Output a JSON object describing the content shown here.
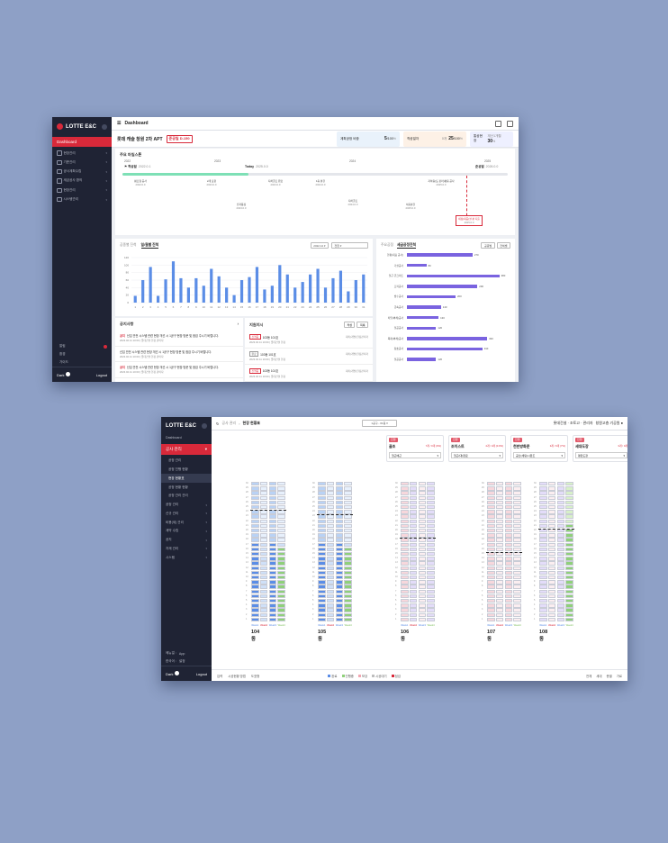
{
  "window1": {
    "logo": "LOTTE E&C",
    "nav": {
      "active": "Dashboard",
      "items": [
        "현장관리",
        "기준관리",
        "공사계획수립",
        "세금공사 환의",
        "현장관리",
        "시스템관리"
      ]
    },
    "util": [
      "알림",
      "환경",
      "가이드"
    ],
    "footer": {
      "dark_label": "Dark",
      "logout_label": "Logout"
    },
    "header": {
      "title": "Dashboard"
    },
    "project": {
      "name": "롯데 캐슬 창원 2차 APT",
      "dday": "준공일 D-150",
      "stats": [
        {
          "label": "계획공정 비중",
          "value": "5",
          "total": "/100",
          "unit": "%",
          "color": "#e9f2fb"
        },
        {
          "label": "착공일자",
          "value": "25",
          "total": "/100",
          "unit": "%",
          "prefix": "0개",
          "color": "#fdf1e6"
        },
        {
          "label": "통상현장",
          "value": "30",
          "total": "",
          "unit": "%",
          "prefix": "재산1개월",
          "color": "#eef0ff"
        }
      ]
    },
    "milestone": {
      "title": "주요 마일스톤",
      "years": [
        "2022",
        "2023",
        "2024",
        "2025"
      ],
      "start_label": "착공일",
      "start_date": "2022.0.1",
      "today_label": "Today",
      "today_date": "2025.0.0",
      "end_label": "준공일",
      "end_date": "2026.0.0",
      "items_top": [
        {
          "name": "펌프형 공사",
          "date": "2022.0.0"
        },
        {
          "name": "2개 포함",
          "date": "2023.0.0"
        },
        {
          "name": "지하골조 완료",
          "date": "2023.0.0"
        },
        {
          "name": "1층 분할",
          "date": "2024.0.0"
        },
        {
          "name": "지하층(토 정리)평층 공사",
          "date": "2025.0.0"
        }
      ],
      "items_bottom": [
        {
          "name": "전자동장",
          "date": "2023.0.0"
        },
        {
          "name": "지하골조",
          "date": "2024.0.0"
        },
        {
          "name": "서층분할",
          "date": "2025.0.0"
        }
      ],
      "flag": {
        "name": "세정(대공)설 분 지출",
        "date": "2025.0.0"
      }
    },
    "progress_chart": {
      "tabs": [
        "공종별 진척",
        "일/월별 진척"
      ],
      "filter_year": "2022.12",
      "filter_type": "전환"
    },
    "chart_data": {
      "type": "bar",
      "categories": [
        "1",
        "2",
        "3",
        "4",
        "5",
        "6",
        "7",
        "8",
        "9",
        "10",
        "11",
        "12",
        "13",
        "14",
        "15",
        "16",
        "17",
        "18",
        "19",
        "20",
        "21",
        "22",
        "23",
        "24",
        "25",
        "26",
        "27",
        "28",
        "29",
        "30",
        "31"
      ],
      "values": [
        18,
        60,
        95,
        18,
        62,
        110,
        65,
        40,
        65,
        45,
        90,
        70,
        40,
        20,
        60,
        68,
        95,
        35,
        45,
        100,
        75,
        40,
        55,
        75,
        90,
        40,
        65,
        85,
        30,
        60,
        75
      ],
      "ylim": [
        0,
        120
      ],
      "yticks": [
        "0",
        "20",
        "40",
        "60",
        "80",
        "100",
        "120"
      ],
      "xlabel": "",
      "ylabel": "",
      "title": ""
    },
    "notice": {
      "title": "공지사항",
      "rows": [
        {
          "tag": "공지",
          "text": "신입 안전 시스템 관련 현장 개선 시 1공구 현장 방문 및 점검 주시기 바랍니다.",
          "date": "2023.02.11 10:00 | 롯데건설 현장 관리자"
        },
        {
          "tag": "",
          "text": "신입 안전 시스템 관련 현장 개선 시 1공구 현장 방문 및 점검 주시기 바랍니다.",
          "date": "2023.02.11 10:00 | 롯데건설 현장 관리자"
        },
        {
          "tag": "공지",
          "text": "신입 안전 시스템 관련 현장 개선 시 1공구 현장 방문 및 점검 주시기 바랍니다.",
          "date": "2023.02.11 10:00 | 롯데건설 현장 관리자"
        }
      ]
    },
    "instruction": {
      "title": "지원지시",
      "buttons": [
        "작성",
        "목록"
      ],
      "rows": [
        {
          "tag": "진행중",
          "text": "103동 101호",
          "date": "2023.02.11 10:00 | 롯데건설 현장",
          "owner": "대리(개발)현장관리자"
        },
        {
          "tag": "완료",
          "text": "103동 101호",
          "date": "2023.02.11 10:00 | 롯데건설 현장",
          "owner": "대리(개발)현장관리자"
        },
        {
          "tag": "진행중",
          "text": "103동 101호",
          "date": "2023.02.11 10:00 | 롯데건설 현장",
          "owner": "대리(개발)현장관리자"
        }
      ]
    },
    "rank": {
      "title": "주요공정",
      "subtitle": "세금공정진척",
      "buttons": [
        "공종별",
        "전체별"
      ],
      "items": [
        {
          "name": "현황(대표 공사)",
          "value": 270
        },
        {
          "name": "가설공사",
          "value": 80
        },
        {
          "name": "철근 콘크리트",
          "value": 380
        },
        {
          "name": "조적공사",
          "value": 290
        },
        {
          "name": "방수공사",
          "value": 200
        },
        {
          "name": "금속공사",
          "value": 140
        },
        {
          "name": "타일(벽체)공사",
          "value": 130
        },
        {
          "name": "철공공사",
          "value": 120
        },
        {
          "name": "목재(벽체)공사",
          "value": 330
        },
        {
          "name": "창호공사",
          "value": 310
        },
        {
          "name": "철공공사",
          "value": 120
        }
      ]
    }
  },
  "window2": {
    "logo": "LOTTE E&C",
    "nav": {
      "top": "Dashboard",
      "active": "공사 관리",
      "sub": [
        "공정 관리",
        "공정 진행 현황",
        "현장 현황표",
        "공정 현황 현황",
        "공정 관리 관리"
      ],
      "items": [
        "공정 관리",
        "신규 관리",
        "비용(세) 관리",
        "계약 수립",
        "공지",
        "자재 관리",
        "시스템"
      ]
    },
    "side_foot": {
      "menu_label": "메뉴얼 :",
      "menu_value": "App",
      "lang_label": "한국어 :",
      "lang_value": "설정",
      "dark": "Dark",
      "logout": "Logout"
    },
    "header": {
      "crumb1": "공사 관리",
      "crumb2": "현장 현황표",
      "select": "1공구 - 01동",
      "user1": "롯데건설 · 조토고 · 관리자",
      "user2": "창원고층 기공원 ●"
    },
    "cards": [
      {
        "pill": "진행",
        "title": "골조",
        "value": "7개 / 0개 (0%)",
        "select": "철근배근"
      },
      {
        "pill": "진행",
        "title": "조이스트",
        "value": "4개 / 0개 (0.0%)",
        "select": "철근(대)완료"
      },
      {
        "pill": "진행",
        "title": "천판방화문",
        "value": "3개 / 0개 (7%)",
        "select": "공산(세팅)시완조"
      },
      {
        "pill": "진행",
        "title": "세대도장",
        "value": "3개 / 0개",
        "select": "평판도장"
      }
    ],
    "buildings": [
      {
        "name": "104동",
        "weeks": [
          "Week1",
          "Week2",
          "Week3",
          "Week4"
        ]
      },
      {
        "name": "105동",
        "weeks": [
          "Week1",
          "Week2",
          "Week3",
          "Week4"
        ]
      },
      {
        "name": "106동",
        "weeks": [
          "Week1",
          "Week2",
          "Week3",
          "Week4"
        ]
      },
      {
        "name": "107동",
        "weeks": [
          "Week1",
          "Week2",
          "Week3",
          "Week4"
        ]
      },
      {
        "name": "108동",
        "weeks": [
          "Week1",
          "Week2",
          "Week3",
          "Week4"
        ]
      }
    ],
    "footer": {
      "left": [
        "입력",
        "시공현황 방법",
        "도표형"
      ],
      "legend": [
        {
          "label": "완료",
          "color": "#5b8de6"
        },
        {
          "label": "진행중",
          "color": "#8fd07a"
        },
        {
          "label": "보강",
          "color": "#f2a6b1"
        },
        {
          "label": "시공대기",
          "color": "#bdbdbd"
        },
        {
          "label": "점검",
          "color": "#d8293a"
        }
      ],
      "right": [
        "전체",
        "세대",
        "층별",
        "가로"
      ]
    }
  }
}
